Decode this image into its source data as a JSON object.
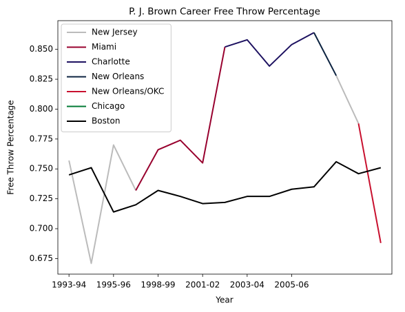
{
  "chart_data": {
    "type": "line",
    "title": "P. J. Brown Career Free Throw Percentage",
    "x_label": "Year",
    "y_label": "Free Throw Percentage",
    "categories": [
      "1993-94",
      null,
      "1995-96",
      null,
      "1998-99",
      null,
      "2001-02",
      null,
      "2003-04",
      null,
      "2005-06",
      null,
      null,
      null,
      null
    ],
    "series": [
      {
        "name": "New Jersey",
        "color": "#bbbbbb",
        "values": [
          0.757,
          0.671,
          0.77,
          0.732,
          null,
          null,
          null,
          null,
          null,
          null,
          null,
          null,
          0.828,
          0.788,
          null
        ]
      },
      {
        "name": "Miami",
        "color": "#98002e",
        "values": [
          null,
          null,
          null,
          0.732,
          0.766,
          0.774,
          0.755,
          0.852,
          null,
          null,
          null,
          null,
          null,
          null,
          null
        ]
      },
      {
        "name": "Charlotte",
        "color": "#1d1160",
        "values": [
          null,
          null,
          null,
          null,
          null,
          null,
          null,
          0.852,
          0.858,
          0.836,
          0.854,
          0.864,
          null,
          null,
          null
        ]
      },
      {
        "name": "New Orleans",
        "color": "#0c2340",
        "values": [
          null,
          null,
          null,
          null,
          null,
          null,
          null,
          null,
          null,
          null,
          null,
          0.864,
          0.828,
          null,
          null
        ]
      },
      {
        "name": "New Orleans/OKC",
        "color": "#c8102e",
        "values": [
          null,
          null,
          null,
          null,
          null,
          null,
          null,
          null,
          null,
          null,
          null,
          null,
          null,
          0.788,
          0.688
        ]
      },
      {
        "name": "Chicago",
        "color": "#007a33",
        "values": [
          null,
          null,
          null,
          null,
          null,
          null,
          null,
          null,
          null,
          null,
          null,
          null,
          null,
          null,
          null
        ]
      },
      {
        "name": "Boston",
        "color": "#000000",
        "values": [
          0.745,
          0.751,
          0.714,
          0.72,
          0.732,
          0.727,
          0.721,
          0.722,
          0.727,
          0.727,
          0.733,
          0.735,
          0.756,
          0.746,
          0.751
        ]
      }
    ],
    "ylim": [
      0.662,
      0.874
    ],
    "yticks": [
      0.675,
      {
        "value": 0.7,
        "label": "0.700"
      },
      0.725,
      {
        "value": 0.75,
        "label": "0.750"
      },
      0.775,
      {
        "value": 0.8,
        "label": "0.800"
      },
      0.825,
      {
        "value": 0.85,
        "label": "0.850"
      }
    ],
    "legend": "upper left"
  }
}
